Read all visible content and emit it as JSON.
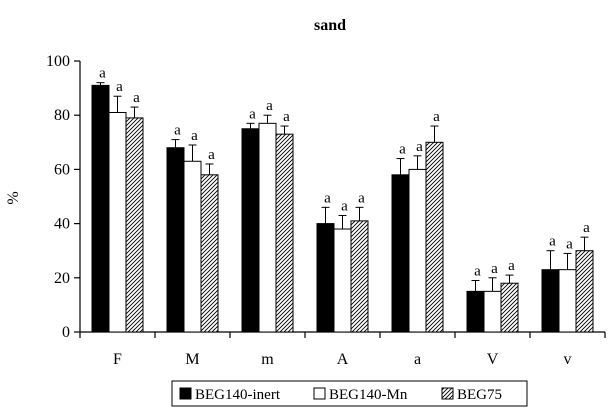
{
  "chart_data": {
    "type": "bar",
    "title": "sand",
    "xlabel": "",
    "ylabel": "%",
    "ylim": [
      0,
      100
    ],
    "yticks": [
      "0",
      "20",
      "40",
      "60",
      "80",
      "100"
    ],
    "categories": [
      "F",
      "M",
      "m",
      "A",
      "a",
      "V",
      "v"
    ],
    "series": [
      {
        "name": "BEG140-inert",
        "fill": "solid-black",
        "values": [
          91,
          68,
          75,
          40,
          58,
          15,
          23
        ],
        "errors": [
          1,
          3,
          2,
          6,
          6,
          4,
          7
        ],
        "labels": [
          "a",
          "a",
          "a",
          "a",
          "a",
          "a",
          "a"
        ]
      },
      {
        "name": "BEG140-Mn",
        "fill": "white",
        "values": [
          81,
          63,
          77,
          38,
          60,
          15,
          23
        ],
        "errors": [
          6,
          6,
          3,
          5,
          5,
          5,
          6
        ],
        "labels": [
          "a",
          "a",
          "a",
          "a",
          "a",
          "a",
          "a"
        ]
      },
      {
        "name": "BEG75",
        "fill": "diagonal-hatch",
        "values": [
          79,
          58,
          73,
          41,
          70,
          18,
          30
        ],
        "errors": [
          4,
          4,
          3,
          5,
          6,
          3,
          5
        ],
        "labels": [
          "a",
          "a",
          "a",
          "a",
          "a",
          "a",
          "a"
        ]
      }
    ],
    "legend": {
      "position": "bottom",
      "boxed": true
    },
    "grid": false
  }
}
